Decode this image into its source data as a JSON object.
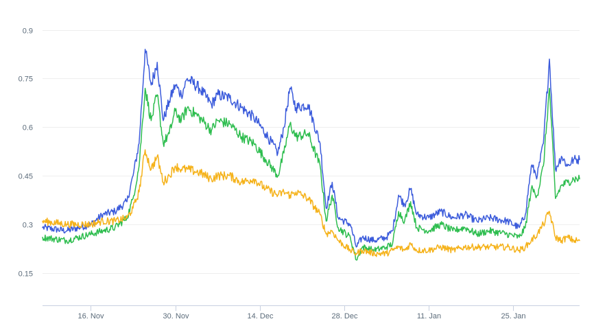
{
  "chart_data": {
    "type": "line",
    "title": "",
    "xlabel": "",
    "ylabel": "",
    "grid": true,
    "legend": "none",
    "x_start": "2021-11-08",
    "x_end": "2022-02-05",
    "ylim": [
      0.05,
      0.95
    ],
    "y_ticks": [
      0.15,
      0.3,
      0.45,
      0.6,
      0.75,
      0.9
    ],
    "y_tick_labels": [
      "0.15",
      "0.3",
      "0.45",
      "0.6",
      "0.75",
      "0.9"
    ],
    "x_ticks": [
      "2021-11-16",
      "2021-11-30",
      "2021-12-14",
      "2021-12-28",
      "2022-01-11",
      "2022-01-25"
    ],
    "x_tick_labels": [
      "16. Nov",
      "30. Nov",
      "14. Dec",
      "28. Dec",
      "11. Jan",
      "25. Jan"
    ],
    "series": [
      {
        "color": "#3b5bdb",
        "points": [
          [
            "2021-11-08",
            0.29
          ],
          [
            "2021-11-12",
            0.28
          ],
          [
            "2021-11-16",
            0.3
          ],
          [
            "2021-11-18",
            0.33
          ],
          [
            "2021-11-20",
            0.34
          ],
          [
            "2021-11-22",
            0.37
          ],
          [
            "2021-11-23",
            0.45
          ],
          [
            "2021-11-24",
            0.55
          ],
          [
            "2021-11-25",
            0.84
          ],
          [
            "2021-11-26",
            0.73
          ],
          [
            "2021-11-27",
            0.8
          ],
          [
            "2021-11-28",
            0.62
          ],
          [
            "2021-11-29",
            0.68
          ],
          [
            "2021-11-30",
            0.73
          ],
          [
            "2021-12-01",
            0.7
          ],
          [
            "2021-12-02",
            0.75
          ],
          [
            "2021-12-04",
            0.72
          ],
          [
            "2021-12-06",
            0.67
          ],
          [
            "2021-12-07",
            0.7
          ],
          [
            "2021-12-09",
            0.69
          ],
          [
            "2021-12-11",
            0.66
          ],
          [
            "2021-12-13",
            0.63
          ],
          [
            "2021-12-15",
            0.58
          ],
          [
            "2021-12-17",
            0.52
          ],
          [
            "2021-12-18",
            0.6
          ],
          [
            "2021-12-19",
            0.72
          ],
          [
            "2021-12-20",
            0.66
          ],
          [
            "2021-12-22",
            0.67
          ],
          [
            "2021-12-24",
            0.55
          ],
          [
            "2021-12-25",
            0.35
          ],
          [
            "2021-12-26",
            0.43
          ],
          [
            "2021-12-27",
            0.32
          ],
          [
            "2021-12-29",
            0.3
          ],
          [
            "2021-12-30",
            0.23
          ],
          [
            "2021-12-31",
            0.26
          ],
          [
            "2022-01-02",
            0.25
          ],
          [
            "2022-01-04",
            0.26
          ],
          [
            "2022-01-05",
            0.28
          ],
          [
            "2022-01-06",
            0.39
          ],
          [
            "2022-01-07",
            0.36
          ],
          [
            "2022-01-08",
            0.41
          ],
          [
            "2022-01-09",
            0.33
          ],
          [
            "2022-01-11",
            0.32
          ],
          [
            "2022-01-13",
            0.34
          ],
          [
            "2022-01-15",
            0.32
          ],
          [
            "2022-01-17",
            0.33
          ],
          [
            "2022-01-19",
            0.31
          ],
          [
            "2022-01-21",
            0.32
          ],
          [
            "2022-01-24",
            0.31
          ],
          [
            "2022-01-26",
            0.29
          ],
          [
            "2022-01-27",
            0.33
          ],
          [
            "2022-01-28",
            0.48
          ],
          [
            "2022-01-29",
            0.45
          ],
          [
            "2022-01-30",
            0.55
          ],
          [
            "2022-01-31",
            0.81
          ],
          [
            "2022-02-01",
            0.47
          ],
          [
            "2022-02-02",
            0.51
          ],
          [
            "2022-02-03",
            0.48
          ],
          [
            "2022-02-04",
            0.5
          ],
          [
            "2022-02-05",
            0.5
          ]
        ]
      },
      {
        "color": "#2dbd4e",
        "points": [
          [
            "2021-11-08",
            0.26
          ],
          [
            "2021-11-12",
            0.25
          ],
          [
            "2021-11-16",
            0.27
          ],
          [
            "2021-11-18",
            0.28
          ],
          [
            "2021-11-20",
            0.29
          ],
          [
            "2021-11-22",
            0.32
          ],
          [
            "2021-11-23",
            0.38
          ],
          [
            "2021-11-24",
            0.48
          ],
          [
            "2021-11-25",
            0.72
          ],
          [
            "2021-11-26",
            0.62
          ],
          [
            "2021-11-27",
            0.7
          ],
          [
            "2021-11-28",
            0.55
          ],
          [
            "2021-11-29",
            0.58
          ],
          [
            "2021-11-30",
            0.65
          ],
          [
            "2021-12-01",
            0.62
          ],
          [
            "2021-12-02",
            0.66
          ],
          [
            "2021-12-04",
            0.63
          ],
          [
            "2021-12-06",
            0.59
          ],
          [
            "2021-12-07",
            0.62
          ],
          [
            "2021-12-09",
            0.61
          ],
          [
            "2021-12-11",
            0.57
          ],
          [
            "2021-12-13",
            0.55
          ],
          [
            "2021-12-15",
            0.5
          ],
          [
            "2021-12-17",
            0.45
          ],
          [
            "2021-12-18",
            0.52
          ],
          [
            "2021-12-19",
            0.61
          ],
          [
            "2021-12-20",
            0.57
          ],
          [
            "2021-12-22",
            0.58
          ],
          [
            "2021-12-24",
            0.48
          ],
          [
            "2021-12-25",
            0.31
          ],
          [
            "2021-12-26",
            0.39
          ],
          [
            "2021-12-27",
            0.29
          ],
          [
            "2021-12-29",
            0.26
          ],
          [
            "2021-12-30",
            0.19
          ],
          [
            "2021-12-31",
            0.23
          ],
          [
            "2022-01-02",
            0.22
          ],
          [
            "2022-01-04",
            0.23
          ],
          [
            "2022-01-05",
            0.24
          ],
          [
            "2022-01-06",
            0.34
          ],
          [
            "2022-01-07",
            0.31
          ],
          [
            "2022-01-08",
            0.37
          ],
          [
            "2022-01-09",
            0.29
          ],
          [
            "2022-01-11",
            0.28
          ],
          [
            "2022-01-13",
            0.3
          ],
          [
            "2022-01-15",
            0.28
          ],
          [
            "2022-01-17",
            0.29
          ],
          [
            "2022-01-19",
            0.27
          ],
          [
            "2022-01-21",
            0.28
          ],
          [
            "2022-01-24",
            0.27
          ],
          [
            "2022-01-26",
            0.26
          ],
          [
            "2022-01-27",
            0.29
          ],
          [
            "2022-01-28",
            0.41
          ],
          [
            "2022-01-29",
            0.39
          ],
          [
            "2022-01-30",
            0.48
          ],
          [
            "2022-01-31",
            0.72
          ],
          [
            "2022-02-01",
            0.38
          ],
          [
            "2022-02-02",
            0.42
          ],
          [
            "2022-02-03",
            0.43
          ],
          [
            "2022-02-04",
            0.44
          ],
          [
            "2022-02-05",
            0.44
          ]
        ]
      },
      {
        "color": "#f5b21a",
        "points": [
          [
            "2021-11-08",
            0.31
          ],
          [
            "2021-11-12",
            0.3
          ],
          [
            "2021-11-16",
            0.3
          ],
          [
            "2021-11-18",
            0.31
          ],
          [
            "2021-11-20",
            0.31
          ],
          [
            "2021-11-22",
            0.32
          ],
          [
            "2021-11-23",
            0.35
          ],
          [
            "2021-11-24",
            0.4
          ],
          [
            "2021-11-25",
            0.53
          ],
          [
            "2021-11-26",
            0.47
          ],
          [
            "2021-11-27",
            0.51
          ],
          [
            "2021-11-28",
            0.43
          ],
          [
            "2021-11-29",
            0.45
          ],
          [
            "2021-11-30",
            0.48
          ],
          [
            "2021-12-01",
            0.47
          ],
          [
            "2021-12-02",
            0.47
          ],
          [
            "2021-12-04",
            0.46
          ],
          [
            "2021-12-06",
            0.44
          ],
          [
            "2021-12-07",
            0.45
          ],
          [
            "2021-12-09",
            0.45
          ],
          [
            "2021-12-11",
            0.43
          ],
          [
            "2021-12-13",
            0.44
          ],
          [
            "2021-12-15",
            0.41
          ],
          [
            "2021-12-17",
            0.39
          ],
          [
            "2021-12-18",
            0.4
          ],
          [
            "2021-12-19",
            0.39
          ],
          [
            "2021-12-20",
            0.4
          ],
          [
            "2021-12-22",
            0.38
          ],
          [
            "2021-12-24",
            0.33
          ],
          [
            "2021-12-25",
            0.27
          ],
          [
            "2021-12-26",
            0.28
          ],
          [
            "2021-12-27",
            0.25
          ],
          [
            "2021-12-29",
            0.22
          ],
          [
            "2021-12-30",
            0.21
          ],
          [
            "2021-12-31",
            0.22
          ],
          [
            "2022-01-02",
            0.21
          ],
          [
            "2022-01-04",
            0.21
          ],
          [
            "2022-01-05",
            0.22
          ],
          [
            "2022-01-06",
            0.23
          ],
          [
            "2022-01-07",
            0.22
          ],
          [
            "2022-01-08",
            0.24
          ],
          [
            "2022-01-09",
            0.22
          ],
          [
            "2022-01-11",
            0.22
          ],
          [
            "2022-01-13",
            0.23
          ],
          [
            "2022-01-15",
            0.22
          ],
          [
            "2022-01-17",
            0.23
          ],
          [
            "2022-01-19",
            0.23
          ],
          [
            "2022-01-21",
            0.23
          ],
          [
            "2022-01-24",
            0.23
          ],
          [
            "2022-01-26",
            0.22
          ],
          [
            "2022-01-27",
            0.23
          ],
          [
            "2022-01-28",
            0.25
          ],
          [
            "2022-01-29",
            0.27
          ],
          [
            "2022-01-30",
            0.3
          ],
          [
            "2022-01-31",
            0.34
          ],
          [
            "2022-02-01",
            0.26
          ],
          [
            "2022-02-02",
            0.25
          ],
          [
            "2022-02-03",
            0.26
          ],
          [
            "2022-02-04",
            0.25
          ],
          [
            "2022-02-05",
            0.25
          ]
        ]
      }
    ]
  }
}
